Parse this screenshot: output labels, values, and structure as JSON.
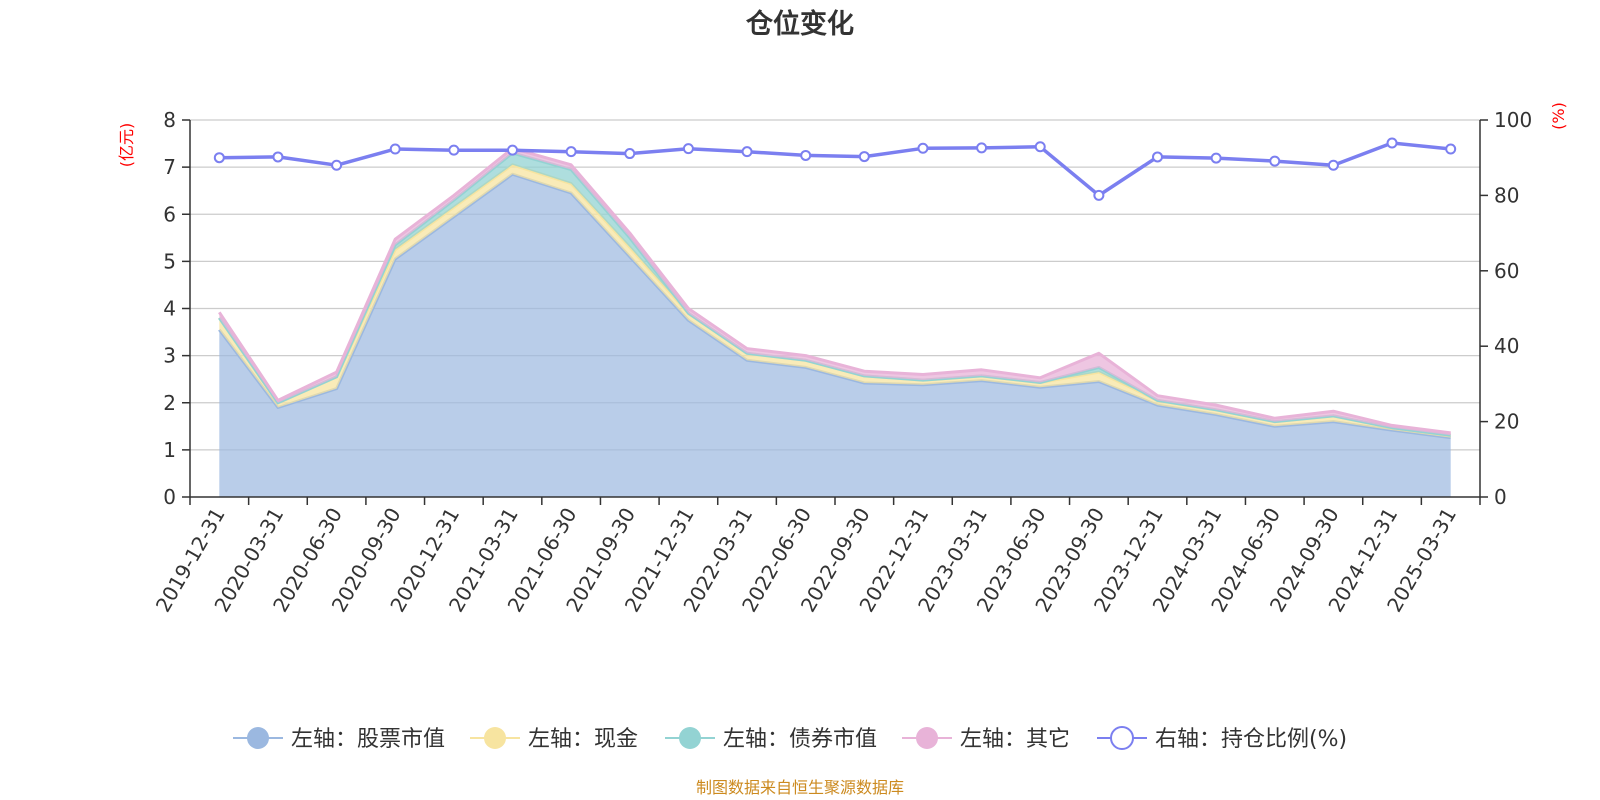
{
  "chart_data": {
    "type": "area",
    "title": "仓位变化",
    "left_unit": "(亿元)",
    "right_unit": "(%)",
    "categories": [
      "2019-12-31",
      "2020-03-31",
      "2020-06-30",
      "2020-09-30",
      "2020-12-31",
      "2021-03-31",
      "2021-06-30",
      "2021-09-30",
      "2021-12-31",
      "2022-03-31",
      "2022-06-30",
      "2022-09-30",
      "2022-12-31",
      "2023-03-31",
      "2023-06-30",
      "2023-09-30",
      "2023-12-31",
      "2024-03-31",
      "2024-06-30",
      "2024-09-30",
      "2024-12-31",
      "2025-03-31"
    ],
    "left_axis": {
      "min": 0,
      "max": 8,
      "ticks": [
        0,
        1,
        2,
        3,
        4,
        5,
        6,
        7,
        8
      ]
    },
    "right_axis": {
      "min": 0,
      "max": 100,
      "ticks": [
        0,
        20,
        40,
        60,
        80,
        100
      ]
    },
    "grid": true,
    "legend_position": "bottom",
    "series": [
      {
        "name": "左轴：股票市值",
        "axis": "left",
        "stacked": true,
        "color": "#9bb8e0",
        "values": [
          3.55,
          1.9,
          2.3,
          5.05,
          5.95,
          6.85,
          6.45,
          5.1,
          3.75,
          2.9,
          2.75,
          2.42,
          2.38,
          2.47,
          2.33,
          2.45,
          1.95,
          1.75,
          1.5,
          1.6,
          1.42,
          1.26
        ]
      },
      {
        "name": "左轴：现金",
        "axis": "left",
        "stacked": true,
        "color": "#f7e4a0",
        "values": [
          0.25,
          0.1,
          0.25,
          0.2,
          0.2,
          0.2,
          0.2,
          0.2,
          0.15,
          0.15,
          0.15,
          0.15,
          0.1,
          0.1,
          0.1,
          0.2,
          0.1,
          0.1,
          0.1,
          0.12,
          0.05,
          0.05
        ]
      },
      {
        "name": "左轴：债券市值",
        "axis": "left",
        "stacked": true,
        "color": "#93d3d3",
        "values": [
          0.0,
          0.0,
          0.0,
          0.1,
          0.15,
          0.25,
          0.3,
          0.2,
          0.0,
          0.0,
          0.0,
          0.0,
          0.0,
          0.0,
          0.0,
          0.1,
          0.0,
          0.0,
          0.0,
          0.0,
          0.0,
          0.0
        ]
      },
      {
        "name": "左轴：其它",
        "axis": "left",
        "stacked": true,
        "color": "#e8b3d8",
        "values": [
          0.12,
          0.05,
          0.1,
          0.12,
          0.1,
          0.1,
          0.1,
          0.1,
          0.1,
          0.1,
          0.1,
          0.1,
          0.12,
          0.13,
          0.1,
          0.3,
          0.1,
          0.1,
          0.07,
          0.1,
          0.05,
          0.05
        ]
      },
      {
        "name": "右轴：持仓比例(%)",
        "axis": "right",
        "stacked": false,
        "color": "#7b7ff0",
        "values": [
          90,
          90.2,
          88,
          92.3,
          92,
          92,
          91.6,
          91.1,
          92.4,
          91.6,
          90.6,
          90.3,
          92.5,
          92.6,
          92.9,
          80,
          90.2,
          89.9,
          89.1,
          88,
          93.9,
          92.3
        ]
      }
    ],
    "source_note": "制图数据来自恒生聚源数据库"
  }
}
